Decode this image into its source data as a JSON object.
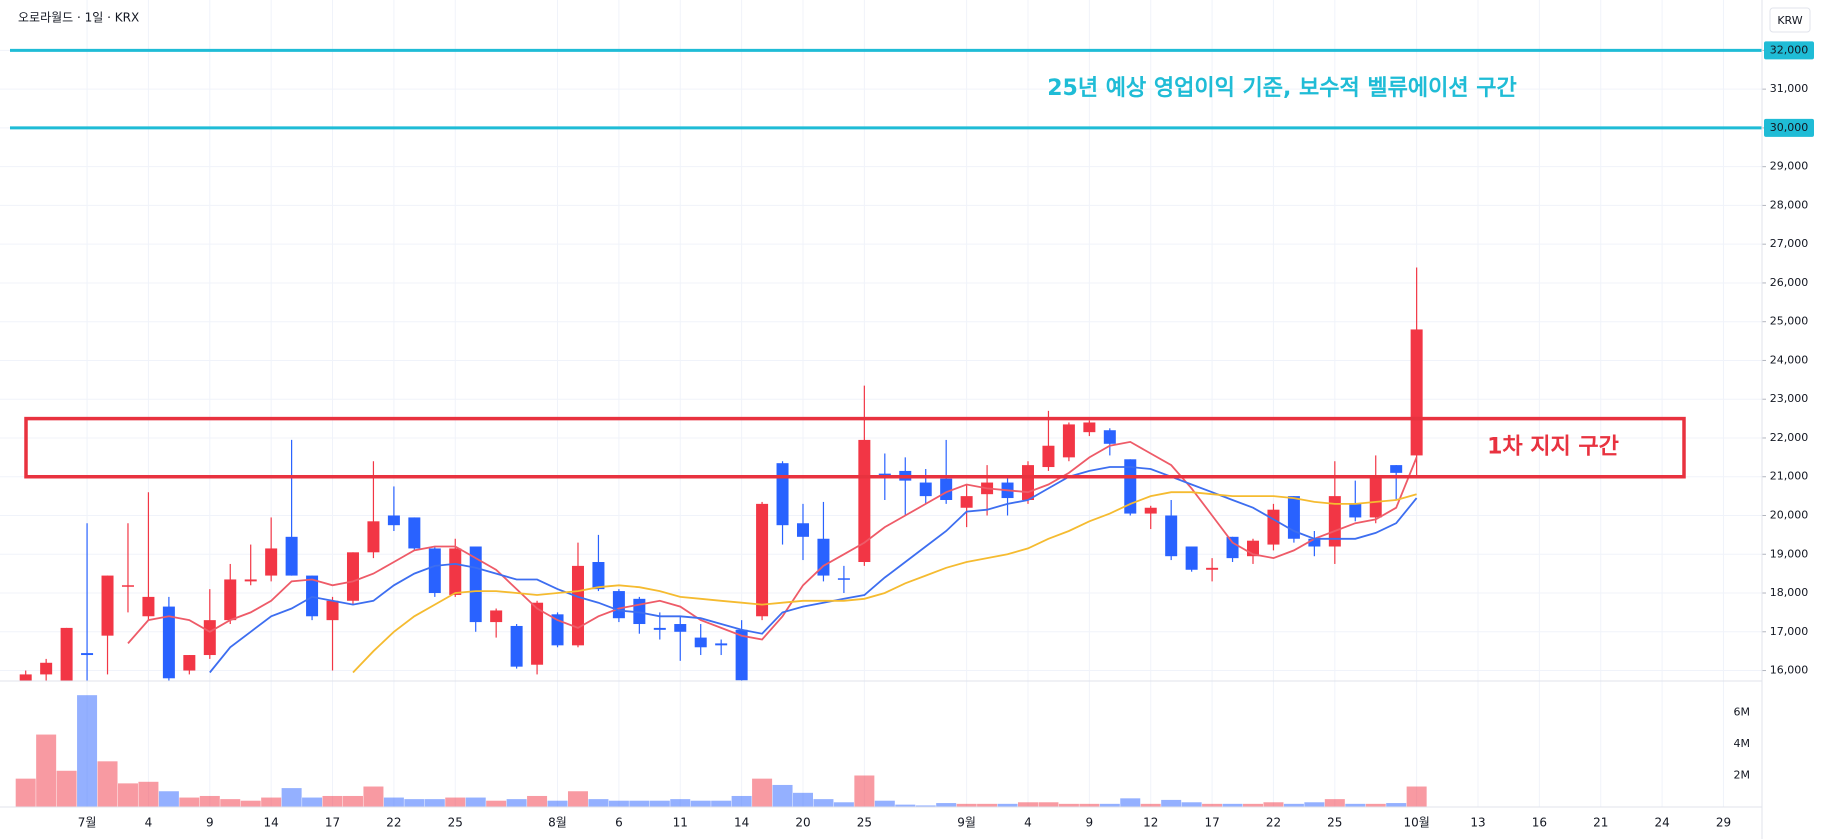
{
  "chart_data": {
    "type": "candlestick",
    "title": "오로라월드 · 1일 · KRX",
    "currency": "KRW",
    "annotation": "25년 예상 영업이익 기준, 보수적 벨류에이션 구간",
    "annotation_color": "#1fbcd6",
    "categories": [
      null,
      null,
      null,
      "7월",
      null,
      null,
      "4",
      null,
      null,
      "9",
      null,
      null,
      "14",
      null,
      null,
      "17",
      null,
      null,
      "22",
      null,
      null,
      "25",
      null,
      null,
      null,
      null,
      "8월",
      null,
      null,
      "6",
      null,
      null,
      "11",
      null,
      null,
      "14",
      null,
      null,
      "20",
      null,
      null,
      "25",
      null,
      null,
      null,
      null,
      "9월",
      null,
      null,
      "4",
      null,
      null,
      "9",
      null,
      null,
      "12",
      null,
      null,
      "17",
      null,
      null,
      "22",
      null,
      null,
      "25",
      null,
      null,
      null,
      "10월",
      null,
      null,
      "13",
      null,
      null,
      "16",
      null,
      null,
      "21",
      null,
      null,
      "24",
      null,
      null,
      "29"
    ],
    "open": [
      15300,
      15900,
      15500,
      16450,
      16900,
      18180,
      17400,
      17650,
      16000,
      16400,
      17300,
      18300,
      18450,
      19450,
      18450,
      17300,
      17800,
      19050,
      20000,
      19950,
      19150,
      17950,
      19200,
      17250,
      17150,
      16150,
      17450,
      16650,
      18800,
      18050,
      17850,
      17100,
      17200,
      16850,
      16700,
      17050,
      17400,
      21350,
      19800,
      19400,
      18380,
      18800,
      21080,
      21150,
      20850,
      20950,
      20200,
      20550,
      20850,
      20400,
      21250,
      21500,
      22150,
      22200,
      21450,
      20050,
      20000,
      19200,
      18600,
      19450,
      18950,
      19250,
      20500,
      19400,
      19200,
      20300,
      19950,
      21300,
      21550,
      null,
      null,
      null,
      null,
      null,
      null,
      null,
      null,
      null,
      null,
      null,
      null,
      null,
      null,
      null
    ],
    "high": [
      16000,
      16300,
      17100,
      19800,
      18450,
      19800,
      20600,
      17900,
      16400,
      18100,
      18750,
      19250,
      19950,
      21950,
      18450,
      17900,
      19050,
      21400,
      20750,
      19950,
      19200,
      19400,
      19200,
      17600,
      17200,
      17800,
      17500,
      19300,
      19500,
      18100,
      17900,
      17500,
      17400,
      17200,
      16800,
      17300,
      20350,
      21400,
      20300,
      20350,
      18700,
      23350,
      21600,
      21500,
      21200,
      21950,
      20800,
      21300,
      21000,
      21400,
      22700,
      22400,
      22450,
      22250,
      21450,
      20250,
      20400,
      19200,
      18900,
      19450,
      19400,
      20300,
      20500,
      19600,
      21400,
      20900,
      21550,
      21300,
      26400,
      null,
      null,
      null,
      null,
      null,
      null,
      null,
      null,
      null,
      null,
      null,
      null,
      null,
      null,
      null
    ],
    "low": [
      15200,
      15500,
      15400,
      15600,
      15900,
      17500,
      17300,
      15700,
      15900,
      16300,
      17200,
      18200,
      18300,
      18450,
      17300,
      16000,
      17700,
      18900,
      19600,
      19100,
      17900,
      17900,
      17000,
      16850,
      16050,
      15900,
      16600,
      16600,
      18050,
      17250,
      16950,
      16800,
      16250,
      16400,
      16400,
      15700,
      17300,
      19250,
      18850,
      18300,
      18000,
      18700,
      20400,
      20000,
      20300,
      20300,
      19700,
      20000,
      20000,
      20300,
      21150,
      21400,
      22050,
      21550,
      20000,
      19650,
      18850,
      18550,
      18300,
      18800,
      18750,
      19100,
      19300,
      18950,
      18750,
      19850,
      19800,
      20400,
      21000,
      null,
      null,
      null,
      null,
      null,
      null,
      null,
      null,
      null,
      null,
      null,
      null,
      null,
      null,
      null
    ],
    "close": [
      15900,
      16200,
      17100,
      16400,
      18450,
      18200,
      17900,
      15800,
      16400,
      17300,
      18350,
      18350,
      19150,
      18450,
      17400,
      17800,
      19050,
      19850,
      19750,
      19150,
      18000,
      19150,
      17250,
      17550,
      16100,
      17750,
      16650,
      18700,
      18100,
      17350,
      17200,
      17050,
      17000,
      16600,
      16650,
      15750,
      20300,
      19750,
      19450,
      18450,
      18350,
      21950,
      21050,
      20900,
      20500,
      20400,
      20500,
      20850,
      20450,
      21300,
      21800,
      22350,
      22400,
      21850,
      20050,
      20200,
      18950,
      18600,
      18650,
      18900,
      19350,
      20150,
      19400,
      19200,
      20500,
      19950,
      21000,
      21100,
      24800,
      null,
      null,
      null,
      null,
      null,
      null,
      null,
      null,
      null,
      null,
      null,
      null,
      null,
      null,
      null
    ],
    "volume": [
      1800000,
      4600000,
      2300000,
      7100000,
      2900000,
      1500000,
      1600000,
      1000000,
      600000,
      700000,
      500000,
      400000,
      600000,
      1200000,
      600000,
      700000,
      700000,
      1300000,
      600000,
      500000,
      500000,
      600000,
      600000,
      400000,
      500000,
      700000,
      400000,
      1000000,
      500000,
      400000,
      400000,
      400000,
      500000,
      400000,
      400000,
      700000,
      1800000,
      1400000,
      900000,
      500000,
      300000,
      2000000,
      400000,
      150000,
      100000,
      250000,
      200000,
      200000,
      200000,
      300000,
      300000,
      200000,
      200000,
      200000,
      550000,
      200000,
      450000,
      300000,
      200000,
      200000,
      200000,
      300000,
      200000,
      300000,
      500000,
      200000,
      200000,
      250000,
      1300000,
      null,
      null,
      null,
      null,
      null,
      null,
      null,
      null,
      null,
      null,
      null,
      null,
      null,
      null,
      null
    ],
    "up_color": "#f23645",
    "down_color": "#2962ff",
    "ma": [
      {
        "color": "#ee5b68",
        "values": [
          null,
          null,
          null,
          null,
          null,
          16700,
          17300,
          17400,
          17300,
          17000,
          17300,
          17500,
          17800,
          18300,
          18350,
          18200,
          18300,
          18500,
          18800,
          19100,
          19200,
          19200,
          18900,
          18600,
          18100,
          17600,
          17300,
          17100,
          17400,
          17600,
          17700,
          17800,
          17650,
          17300,
          17100,
          16900,
          16800,
          17400,
          18200,
          18700,
          19000,
          19300,
          19700,
          20000,
          20300,
          20600,
          20800,
          20700,
          20650,
          20600,
          20800,
          21100,
          21500,
          21800,
          21900,
          21600,
          21300,
          20700,
          20000,
          19300,
          19000,
          18900,
          19100,
          19400,
          19600,
          19800,
          19900,
          20200,
          21500,
          null,
          null,
          null,
          null,
          null,
          null,
          null,
          null,
          null,
          null,
          null,
          null,
          null,
          null,
          null
        ]
      },
      {
        "color": "#3d6ef0",
        "values": [
          null,
          null,
          null,
          null,
          null,
          null,
          null,
          null,
          null,
          15950,
          16600,
          17000,
          17400,
          17600,
          17900,
          17800,
          17700,
          17800,
          18200,
          18500,
          18700,
          18750,
          18650,
          18500,
          18350,
          18350,
          18100,
          17900,
          17750,
          17550,
          17500,
          17400,
          17400,
          17350,
          17200,
          17050,
          16950,
          17500,
          17650,
          17750,
          17850,
          17950,
          18400,
          18800,
          19200,
          19600,
          20100,
          20150,
          20300,
          20400,
          20700,
          21000,
          21150,
          21250,
          21250,
          21200,
          21000,
          20800,
          20600,
          20400,
          20200,
          19900,
          19600,
          19400,
          19400,
          19400,
          19550,
          19800,
          20450,
          null,
          null,
          null,
          null,
          null,
          null,
          null,
          null,
          null,
          null,
          null,
          null,
          null,
          null,
          null
        ]
      },
      {
        "color": "#f5bb30",
        "values": [
          null,
          null,
          null,
          null,
          null,
          null,
          null,
          null,
          null,
          null,
          null,
          null,
          null,
          null,
          null,
          null,
          15950,
          16500,
          17000,
          17400,
          17700,
          18000,
          18050,
          18050,
          18000,
          17950,
          18000,
          18050,
          18150,
          18200,
          18150,
          18050,
          17900,
          17850,
          17800,
          17750,
          17700,
          17750,
          17800,
          17800,
          17800,
          17850,
          18000,
          18250,
          18450,
          18650,
          18800,
          18900,
          19000,
          19150,
          19400,
          19600,
          19850,
          20050,
          20300,
          20500,
          20600,
          20600,
          20550,
          20500,
          20500,
          20500,
          20450,
          20350,
          20300,
          20300,
          20350,
          20400,
          20550,
          null,
          null,
          null,
          null,
          null,
          null,
          null,
          null,
          null,
          null,
          null,
          null,
          null,
          null,
          null
        ]
      }
    ],
    "ylim": [
      15730,
      33300
    ],
    "yticks": [
      {
        "value": 16000,
        "label": "16,000"
      },
      {
        "value": 17000,
        "label": "17,000"
      },
      {
        "value": 18000,
        "label": "18,000"
      },
      {
        "value": 19000,
        "label": "19,000"
      },
      {
        "value": 20000,
        "label": "20,000"
      },
      {
        "value": 21000,
        "label": "21,000"
      },
      {
        "value": 22000,
        "label": "22,000"
      },
      {
        "value": 23000,
        "label": "23,000"
      },
      {
        "value": 24000,
        "label": "24,000"
      },
      {
        "value": 25000,
        "label": "25,000"
      },
      {
        "value": 26000,
        "label": "26,000"
      },
      {
        "value": 27000,
        "label": "27,000"
      },
      {
        "value": 28000,
        "label": "28,000"
      },
      {
        "value": 29000,
        "label": "29,000"
      },
      {
        "value": 30000,
        "label": "30,000"
      },
      {
        "value": 31000,
        "label": "31,000"
      },
      {
        "value": 32000,
        "label": "32,000"
      }
    ],
    "vlim": [
      0,
      8000000
    ],
    "vticks": [
      {
        "value": 2000000,
        "label": "2M"
      },
      {
        "value": 4000000,
        "label": "4M"
      },
      {
        "value": 6000000,
        "label": "6M"
      }
    ],
    "hlines": [
      32000,
      30000
    ],
    "hline_color": "#1fbcd6",
    "zone": {
      "low": 21000,
      "high": 22500,
      "label": "1차 지지 구간",
      "color": "#e8323f"
    },
    "grid": true
  }
}
